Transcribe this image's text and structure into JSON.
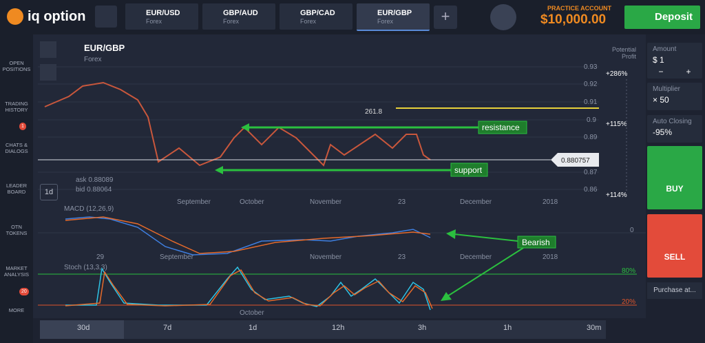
{
  "header": {
    "logo": "iq option",
    "tabs": [
      {
        "pair": "EUR/USD",
        "market": "Forex"
      },
      {
        "pair": "GBP/AUD",
        "market": "Forex"
      },
      {
        "pair": "GBP/CAD",
        "market": "Forex"
      },
      {
        "pair": "EUR/GBP",
        "market": "Forex"
      }
    ],
    "account_label": "PRACTICE ACCOUNT",
    "balance": "$10,000.00",
    "deposit": "Deposit"
  },
  "sidebar": {
    "items": [
      {
        "label": "OPEN POSITIONS"
      },
      {
        "label": "TRADING HISTORY"
      },
      {
        "label": "CHATS & DIALOGS",
        "badge": "1"
      },
      {
        "label": "LEADER BOARD"
      },
      {
        "label": "OTN TOKENS"
      },
      {
        "label": "MARKET ANALYSIS"
      },
      {
        "label": "MORE",
        "badge": "20"
      }
    ]
  },
  "chart": {
    "pair": "EUR/GBP",
    "market": "Forex",
    "potential_profit": "Potential Profit",
    "price_axis": [
      "0.93",
      "0.92",
      "0.91",
      "0.9",
      "0.89",
      "0.87",
      "0.86"
    ],
    "profit_levels": [
      "+286%",
      "+115%",
      "+114%"
    ],
    "fib_label": "261.8",
    "resistance": "resistance",
    "support": "support",
    "current_price": "0.880757",
    "ask": "ask 0.88089",
    "bid": "bid 0.88064",
    "period": "1d",
    "x_labels": [
      "September",
      "October",
      "November",
      "23",
      "December",
      "2018"
    ],
    "macd_label": "MACD (12,26,9)",
    "macd_zero": "0",
    "stoch_label": "Stoch (13,3,3)",
    "stoch_high": "80%",
    "stoch_low": "20%",
    "bearish": "Bearish",
    "lower_x_labels": [
      "29",
      "September",
      "October",
      "November",
      "23",
      "December",
      "2018"
    ]
  },
  "timeframes": [
    "30d",
    "7d",
    "1d",
    "12h",
    "3h",
    "1h",
    "30m"
  ],
  "panel": {
    "amount_label": "Amount",
    "amount": "$ 1",
    "minus": "−",
    "plus": "+",
    "multiplier_label": "Multiplier",
    "multiplier": "× 50",
    "auto_closing_label": "Auto Closing",
    "auto_closing": "-95%",
    "buy": "BUY",
    "sell": "SELL",
    "purchase": "Purchase at..."
  }
}
